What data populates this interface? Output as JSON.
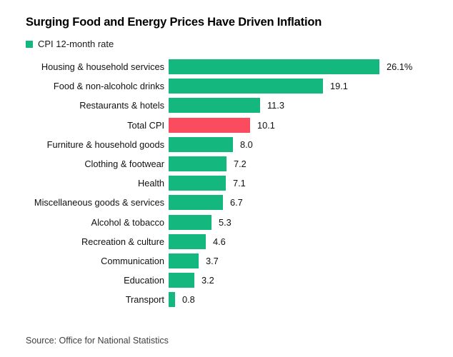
{
  "chart": {
    "title": "Surging Food and Energy Prices Have Driven Inflation",
    "legend_label": "CPI 12-month rate",
    "source": "Source: Office for National Statistics"
  },
  "chart_data": {
    "type": "bar",
    "orientation": "horizontal",
    "title": "Surging Food and Energy Prices Have Driven Inflation",
    "legend": [
      "CPI 12-month rate"
    ],
    "legend_position": "top-left",
    "grid": false,
    "categories": [
      "Housing & household services",
      "Food & non-alcoholc drinks",
      "Restaurants & hotels",
      "Total CPI",
      "Furniture & household goods",
      "Clothing & footwear",
      "Health",
      "Miscellaneous goods & services",
      "Alcohol & tobacco",
      "Recreation & culture",
      "Communication",
      "Education",
      "Transport"
    ],
    "values": [
      26.1,
      19.1,
      11.3,
      10.1,
      8.0,
      7.2,
      7.1,
      6.7,
      5.3,
      4.6,
      3.7,
      3.2,
      0.8
    ],
    "value_labels": [
      "26.1%",
      "19.1",
      "11.3",
      "10.1",
      "8.0",
      "7.2",
      "7.1",
      "6.7",
      "5.3",
      "4.6",
      "3.7",
      "3.2",
      "0.8"
    ],
    "xlim": [
      0,
      26.1
    ],
    "highlight_category": "Total CPI",
    "bar_color": "#14b87e",
    "highlight_color": "#fb4b5f",
    "source": "Office for National Statistics"
  }
}
